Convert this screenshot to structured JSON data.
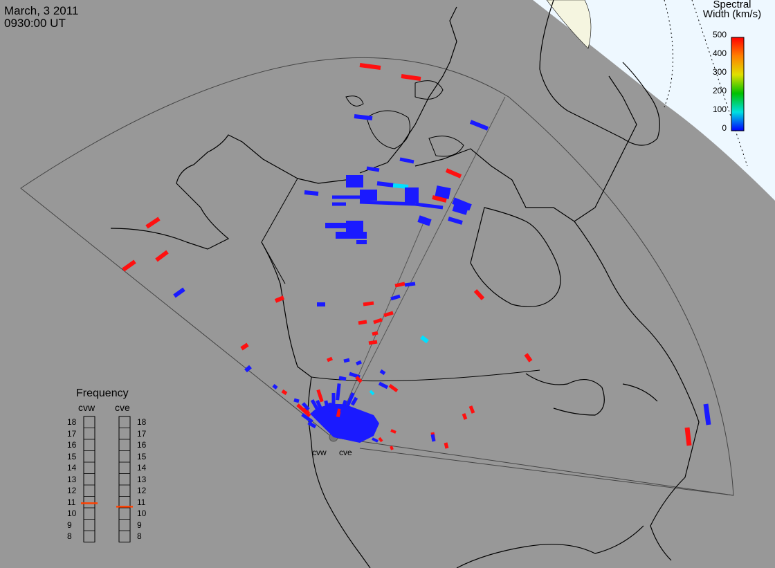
{
  "header": {
    "date": "March, 3 2011",
    "time": "0930:00 UT"
  },
  "colorbar": {
    "title_line1": "Spectral",
    "title_line2": "Width (km/s)",
    "ticks": [
      "500",
      "400",
      "300",
      "200",
      "100",
      "0"
    ],
    "range": [
      0,
      500
    ],
    "colors": [
      "#0000ff",
      "#00e0e0",
      "#00c000",
      "#e0e000",
      "#ff8000",
      "#ff0000"
    ]
  },
  "frequency_panel": {
    "title": "Frequency",
    "radars": [
      {
        "name": "cvw",
        "freq_mhz": 10.9
      },
      {
        "name": "cve",
        "freq_mhz": 10.6
      }
    ],
    "scale": [
      "18",
      "17",
      "16",
      "15",
      "14",
      "13",
      "12",
      "11",
      "10",
      "9",
      "8"
    ],
    "marker_color": "#ff4000"
  },
  "radar_sites": {
    "west_label": "cvw",
    "east_label": "cve"
  },
  "colors": {
    "background": "#989898",
    "polar_region": "#eef8ff",
    "low_width": "#1a1aff",
    "high_width": "#ff1010",
    "mid_width": "#00e0ff"
  }
}
